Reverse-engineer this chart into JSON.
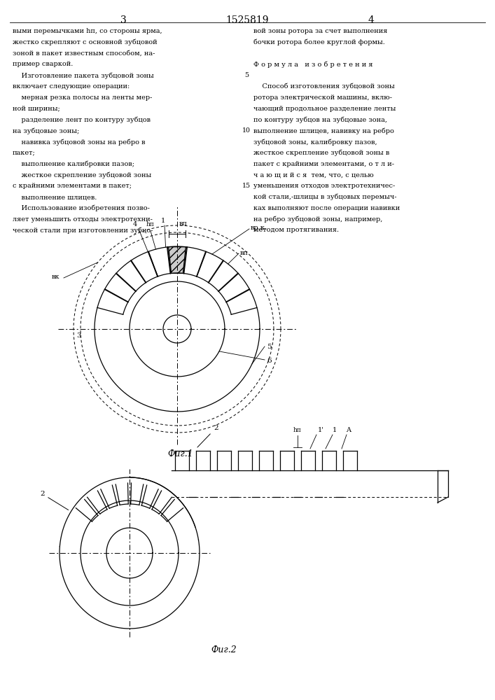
{
  "title": "1525819",
  "page_left": "3",
  "page_right": "4",
  "fig1_caption": "Фиг.1",
  "fig2_caption": "Фиг.2",
  "text_left_lines": [
    "выми перемычками hп, со стороны ярма,",
    "жестко скрепляют с основной зубцовой",
    "зоной в пакет известным способом, на-",
    "пример сваркой.",
    "    Изготовление пакета зубцовой зоны",
    "включает следующие операции:",
    "    мерная резка полосы на ленты мер-",
    "ной ширины;",
    "    разделение лент по контуру зубцов",
    "на зубцовые зоны;",
    "    навивка зубцовой зоны на ребро в",
    "пакет;",
    "    выполнение калибровки пазов;",
    "    жесткое скрепление зубцовой зоны",
    "с крайними элементами в пакет;",
    "    выполнение шлицев.",
    "    Использование изобретения позво-",
    "ляет уменьшить отходы электротехни-",
    "ческой стали при изготовлении зубцо-"
  ],
  "text_right_lines": [
    "вой зоны ротора за счет выполнения",
    "бочки ротора более круглой формы.",
    "",
    "Ф о р м у л а   и з о б р е т е н и я",
    "",
    "    Способ изготовления зубцовой зоны",
    "ротора электрической машины, вклю-",
    "чающий продольное разделение ленты",
    "по контуру зубцов на зубцовые зона,",
    "выполнение шлицев, навивку на ребро",
    "зубцовой зоны, калибровку пазов,",
    "жесткое скрепление зубцовой зоны в",
    "пакет с крайними элементами, о т л и-",
    "ч а ю щ и й с я  тем, что, с целью",
    "уменьшения отходов электротехничес-",
    "кой стали,‑шлицы в зубцовых перемыч-",
    "ках выполняют после операции навивки",
    "на ребро зубцовой зоны, например,",
    "методом протягивания."
  ],
  "background_color": "#ffffff",
  "line_color": "#000000"
}
